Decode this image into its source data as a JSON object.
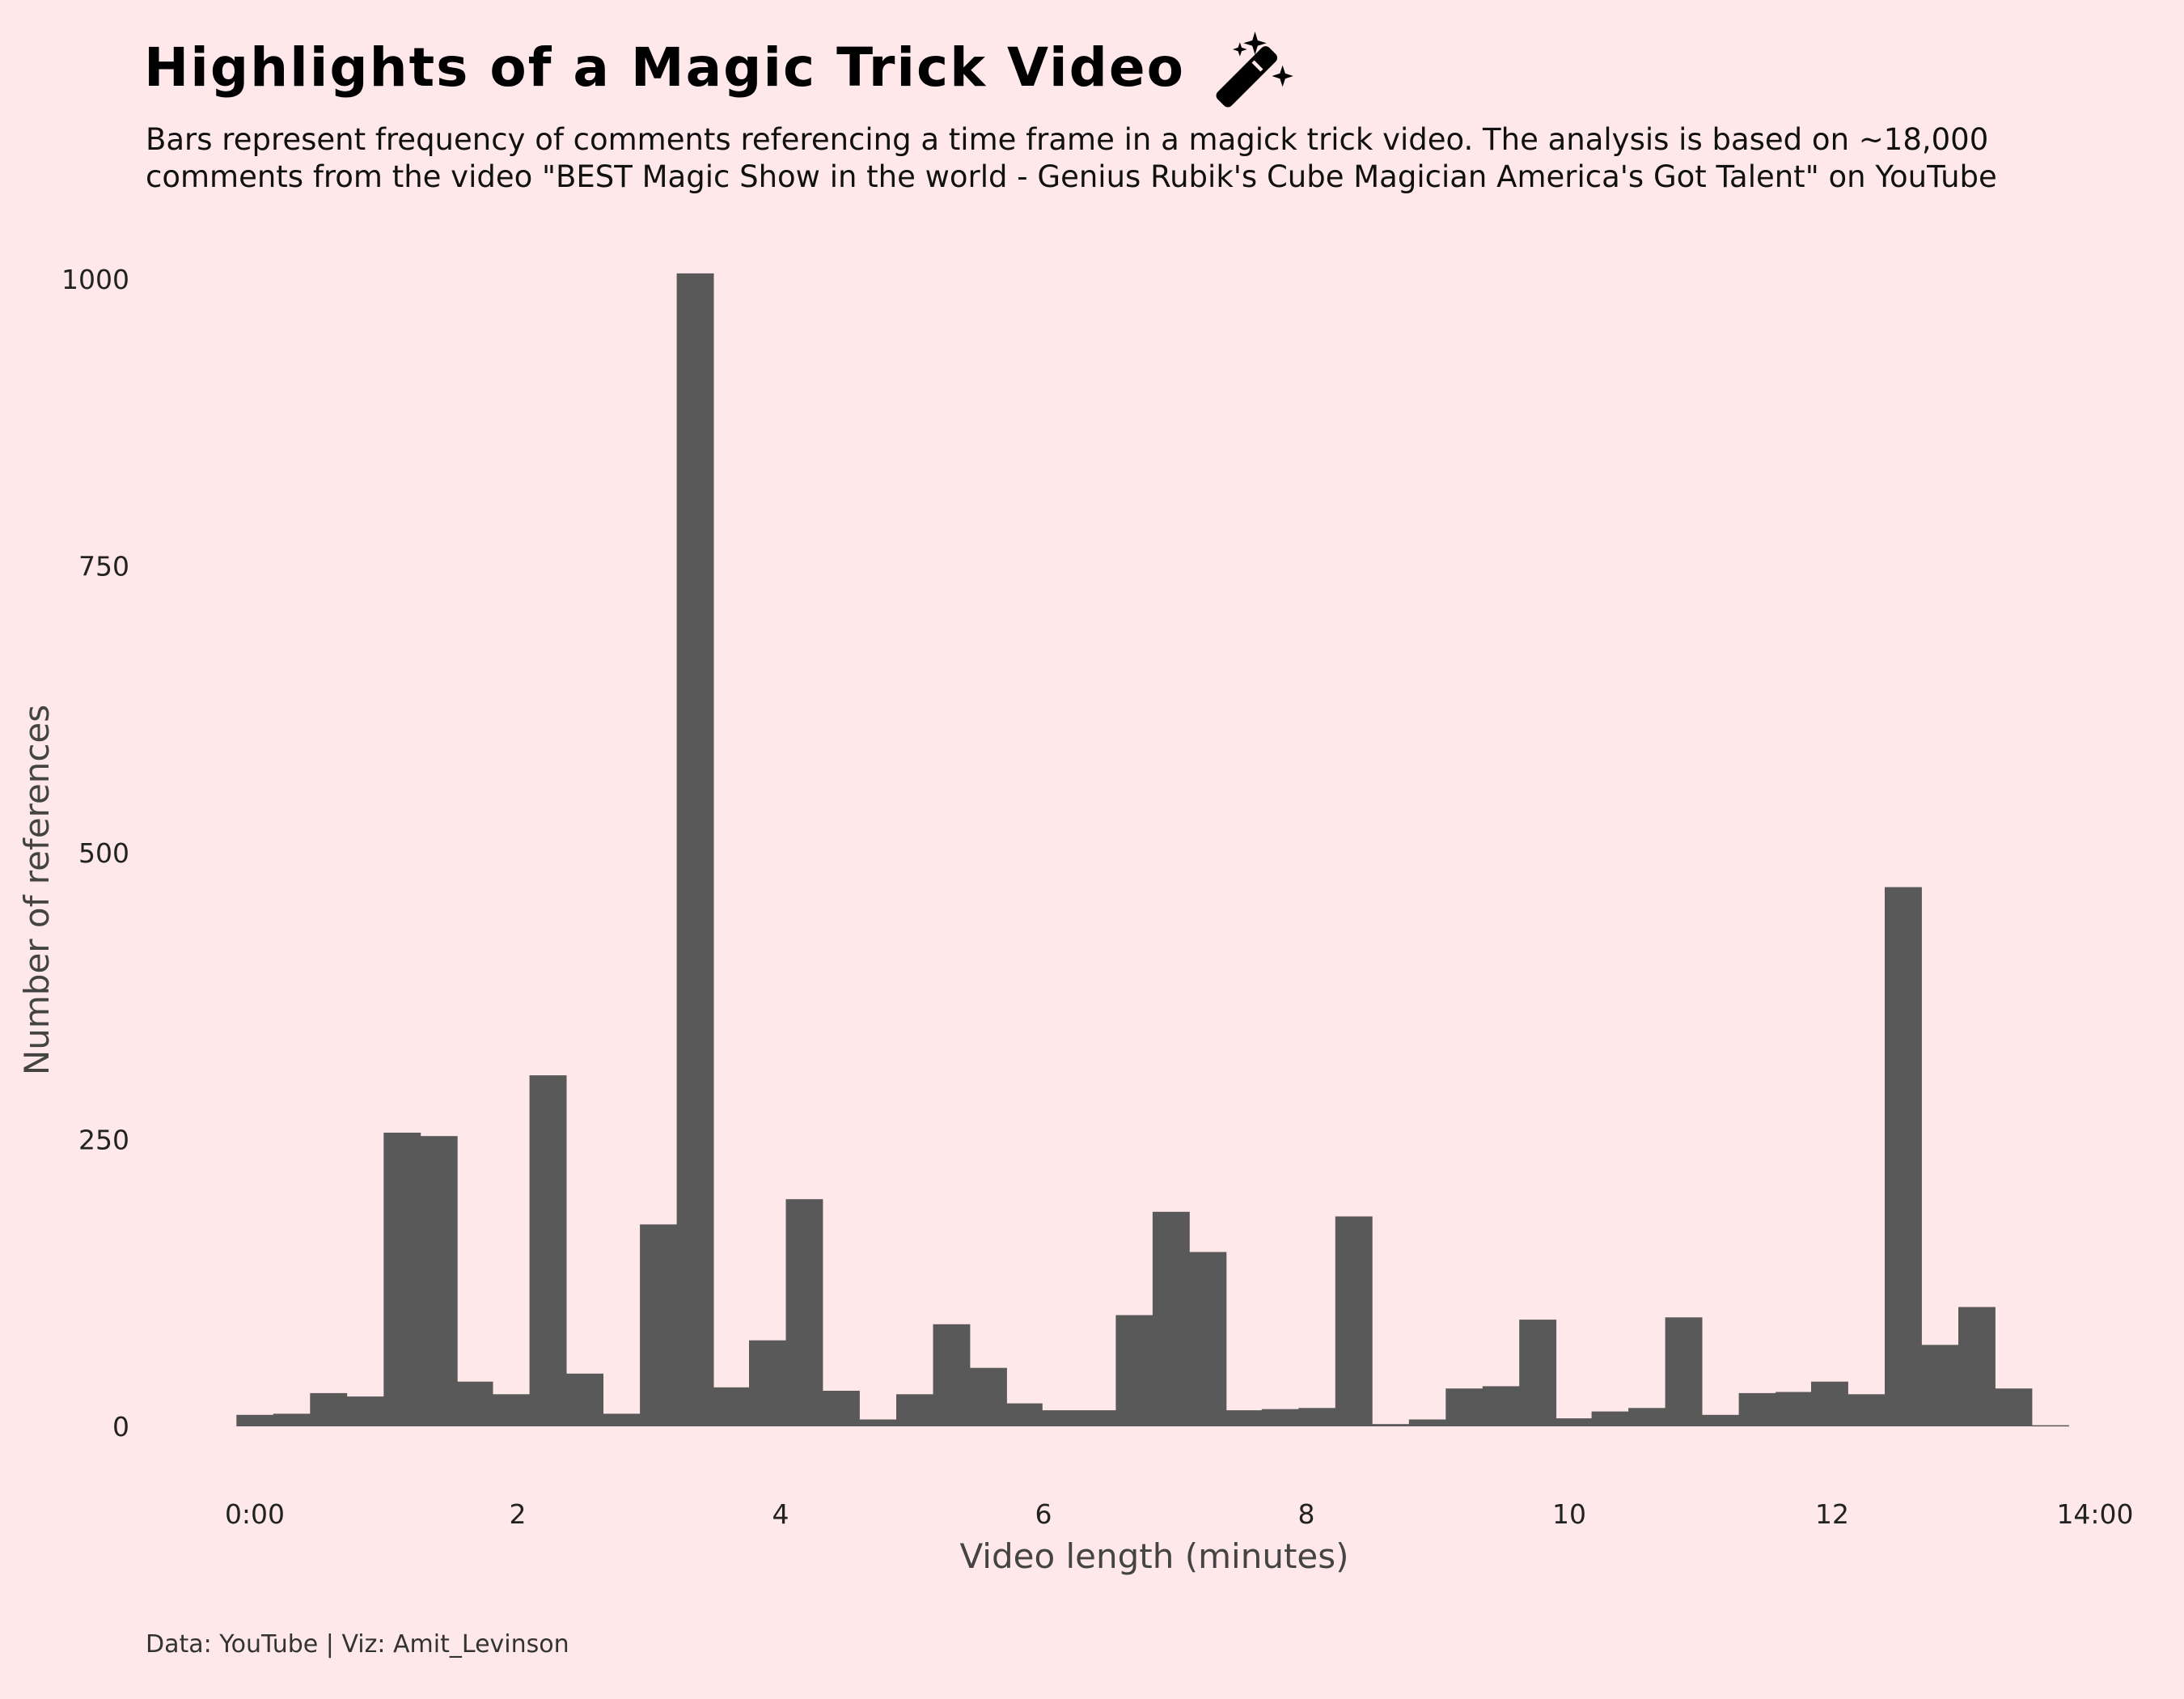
{
  "title": "Highlights of a Magic Trick Video",
  "subtitle": "Bars represent frequency of comments referencing a time frame in a magick trick video. The analysis is based on ~18,000 comments from the video \"BEST Magic Show in the world - Genius Rubik's Cube Magician America's Got Talent\" on YouTube",
  "caption": "Data: YouTube | Viz: Amit_Levinson",
  "icon": "magic-wand-icon",
  "colors": {
    "background": "#ffe8ea",
    "bar": "#595959",
    "title": "#000000"
  },
  "chart_data": {
    "type": "bar",
    "xlabel": "Video length (minutes)",
    "ylabel": "Number of references",
    "xlim": [
      0,
      14
    ],
    "ylim": [
      0,
      1000
    ],
    "xticks": [
      {
        "value": 0,
        "label": "0:00"
      },
      {
        "value": 2,
        "label": "2"
      },
      {
        "value": 4,
        "label": "4"
      },
      {
        "value": 6,
        "label": "6"
      },
      {
        "value": 8,
        "label": "8"
      },
      {
        "value": 10,
        "label": "10"
      },
      {
        "value": 12,
        "label": "12"
      },
      {
        "value": 14,
        "label": "14:00"
      }
    ],
    "yticks": [
      {
        "value": 0,
        "label": "0"
      },
      {
        "value": 250,
        "label": "250"
      },
      {
        "value": 500,
        "label": "500"
      },
      {
        "value": 750,
        "label": "750"
      },
      {
        "value": 1000,
        "label": "1000"
      }
    ],
    "grid": false,
    "bin_width_minutes": 0.2786,
    "bins": [
      {
        "start": -0.14,
        "value": 10
      },
      {
        "start": 0.14,
        "value": 11
      },
      {
        "start": 0.42,
        "value": 29
      },
      {
        "start": 0.7,
        "value": 26
      },
      {
        "start": 0.98,
        "value": 256
      },
      {
        "start": 1.26,
        "value": 253
      },
      {
        "start": 1.53,
        "value": 39
      },
      {
        "start": 1.81,
        "value": 28
      },
      {
        "start": 2.09,
        "value": 306
      },
      {
        "start": 2.37,
        "value": 46
      },
      {
        "start": 2.65,
        "value": 11
      },
      {
        "start": 2.93,
        "value": 176
      },
      {
        "start": 3.21,
        "value": 1005
      },
      {
        "start": 3.48,
        "value": 34
      },
      {
        "start": 3.76,
        "value": 75
      },
      {
        "start": 4.04,
        "value": 198
      },
      {
        "start": 4.32,
        "value": 31
      },
      {
        "start": 4.6,
        "value": 6
      },
      {
        "start": 4.88,
        "value": 28
      },
      {
        "start": 5.16,
        "value": 89
      },
      {
        "start": 5.44,
        "value": 51
      },
      {
        "start": 5.71,
        "value": 20
      },
      {
        "start": 5.99,
        "value": 14
      },
      {
        "start": 6.27,
        "value": 14
      },
      {
        "start": 6.55,
        "value": 97
      },
      {
        "start": 6.83,
        "value": 187
      },
      {
        "start": 7.11,
        "value": 152
      },
      {
        "start": 7.39,
        "value": 14
      },
      {
        "start": 7.66,
        "value": 15
      },
      {
        "start": 7.94,
        "value": 16
      },
      {
        "start": 8.22,
        "value": 183
      },
      {
        "start": 8.5,
        "value": 2
      },
      {
        "start": 8.78,
        "value": 6
      },
      {
        "start": 9.06,
        "value": 33
      },
      {
        "start": 9.34,
        "value": 35
      },
      {
        "start": 9.62,
        "value": 93
      },
      {
        "start": 9.89,
        "value": 7
      },
      {
        "start": 10.17,
        "value": 13
      },
      {
        "start": 10.45,
        "value": 16
      },
      {
        "start": 10.73,
        "value": 95
      },
      {
        "start": 11.01,
        "value": 10
      },
      {
        "start": 11.29,
        "value": 29
      },
      {
        "start": 11.57,
        "value": 30
      },
      {
        "start": 11.84,
        "value": 39
      },
      {
        "start": 12.12,
        "value": 28
      },
      {
        "start": 12.4,
        "value": 470
      },
      {
        "start": 12.68,
        "value": 71
      },
      {
        "start": 12.96,
        "value": 104
      },
      {
        "start": 13.24,
        "value": 33
      },
      {
        "start": 13.52,
        "value": 1
      }
    ]
  }
}
